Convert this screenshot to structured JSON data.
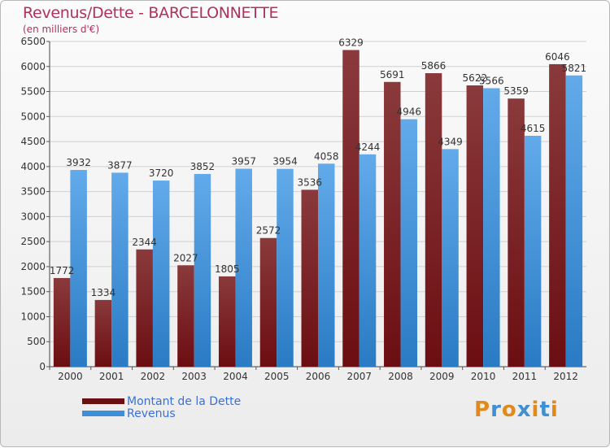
{
  "title": "Revenus/Dette - BARCELONNETTE",
  "subtitle": "(en milliers d'€)",
  "logo_text": "Proxiti",
  "colors": {
    "dette": "#6b0e12",
    "dette_light": "#8a3a3c",
    "revenus": "#2a7bc4",
    "revenus_light": "#62aaea",
    "title": "#b03060",
    "legend_text": "#3a6fd8"
  },
  "legend": [
    {
      "label": "Montant de la Dette",
      "color": "#6b0e12"
    },
    {
      "label": "Revenus",
      "color": "#3d8fd9"
    }
  ],
  "chart_data": {
    "type": "bar",
    "title": "Revenus/Dette - BARCELONNETTE",
    "subtitle": "(en milliers d'€)",
    "categories": [
      "2000",
      "2001",
      "2002",
      "2003",
      "2004",
      "2005",
      "2006",
      "2007",
      "2008",
      "2009",
      "2010",
      "2011",
      "2012"
    ],
    "series": [
      {
        "name": "Montant de la Dette",
        "values": [
          1772,
          1334,
          2344,
          2027,
          1805,
          2572,
          3536,
          6329,
          5691,
          5866,
          5622,
          5359,
          6046
        ]
      },
      {
        "name": "Revenus",
        "values": [
          3932,
          3877,
          3720,
          3852,
          3957,
          3954,
          4058,
          4244,
          4946,
          4349,
          5566,
          4615,
          5821
        ]
      }
    ],
    "ylim": [
      0,
      6500
    ],
    "yticks": [
      0,
      500,
      1000,
      1500,
      2000,
      2500,
      3000,
      3500,
      4000,
      4500,
      5000,
      5500,
      6000,
      6500
    ],
    "grid": true,
    "legend_position": "bottom-left"
  }
}
